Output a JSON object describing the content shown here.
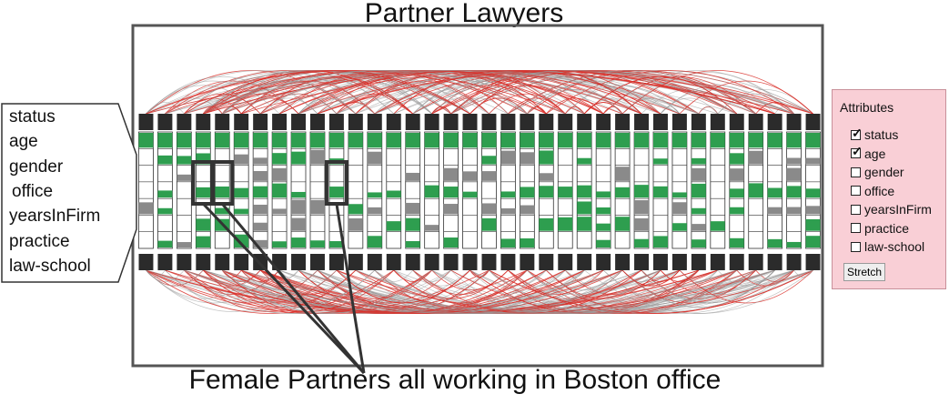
{
  "title": "Partner Lawyers",
  "caption": "Female Partners all working in Boston  office",
  "attribute_rows": [
    "status",
    "age",
    "gender",
    "office",
    "yearsInFirm",
    "practice",
    "law-school"
  ],
  "panel": {
    "title": "Attributes",
    "options": [
      {
        "label": "status",
        "checked": true
      },
      {
        "label": "age",
        "checked": true
      },
      {
        "label": "gender",
        "checked": false
      },
      {
        "label": "office",
        "checked": false
      },
      {
        "label": "yearsInFirm",
        "checked": false
      },
      {
        "label": "practice",
        "checked": false
      },
      {
        "label": "law-school",
        "checked": false
      }
    ],
    "button_label": "Stretch"
  },
  "nodes": 36,
  "highlighted_nodes": [
    3,
    4,
    10
  ],
  "colors": {
    "node": "#2b2b2b",
    "green": "#2e9e4f",
    "gray": "#8a8a8a",
    "edge_gray": "#9a9a9a",
    "edge_red": "#d9302a",
    "frame": "#555555",
    "panel_bg": "#f9cfd6"
  }
}
